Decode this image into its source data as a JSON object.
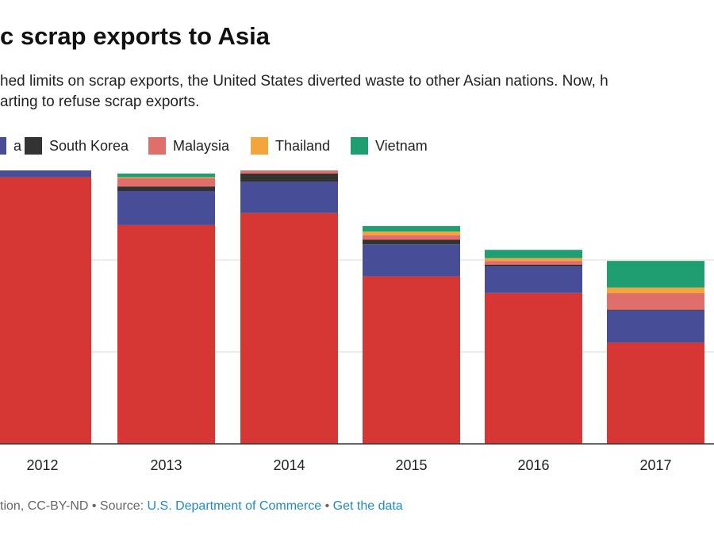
{
  "title": "c scrap exports to Asia",
  "subtitle": {
    "line1": "hed limits on scrap exports, the United States diverted waste to other Asian nations. Now, h",
    "line2": "arting to refuse scrap exports."
  },
  "footer": {
    "prefix": "tion, CC-BY-ND • Source: ",
    "source": "U.S. Department of Commerce",
    "separator": " • ",
    "get_data": "Get the data"
  },
  "chart_data": {
    "type": "bar",
    "stacked": true,
    "categories": [
      "2012",
      "2013",
      "2014",
      "2015",
      "2016",
      "2017"
    ],
    "series": [
      {
        "name": "",
        "color": "#d63735",
        "values": [
          290,
          238,
          251,
          182,
          164,
          110
        ]
      },
      {
        "name": "",
        "color": "#474d97",
        "values": [
          30,
          37,
          34,
          35,
          29,
          35
        ]
      },
      {
        "name": "South Korea",
        "color": "#333333",
        "values": [
          3,
          5,
          9,
          5,
          2,
          1
        ]
      },
      {
        "name": "Malaysia",
        "color": "#e06e6a",
        "values": [
          5,
          9,
          6,
          5,
          4,
          18
        ]
      },
      {
        "name": "Thailand",
        "color": "#f3a43a",
        "values": [
          1,
          1,
          4,
          4,
          3,
          6
        ]
      },
      {
        "name": "Vietnam",
        "color": "#1f9e72",
        "values": [
          3,
          4,
          6,
          6,
          9,
          29
        ]
      }
    ],
    "legend": [
      {
        "label": "a",
        "color": "#474d97",
        "partial": true
      },
      {
        "label": "South Korea",
        "color": "#333333"
      },
      {
        "label": "Malaysia",
        "color": "#e06e6a"
      },
      {
        "label": "Thailand",
        "color": "#f3a43a"
      },
      {
        "label": "Vietnam",
        "color": "#1f9e72"
      }
    ],
    "legend_position": "top-left",
    "gridlines": [
      100,
      200,
      300
    ],
    "grid": true
  }
}
